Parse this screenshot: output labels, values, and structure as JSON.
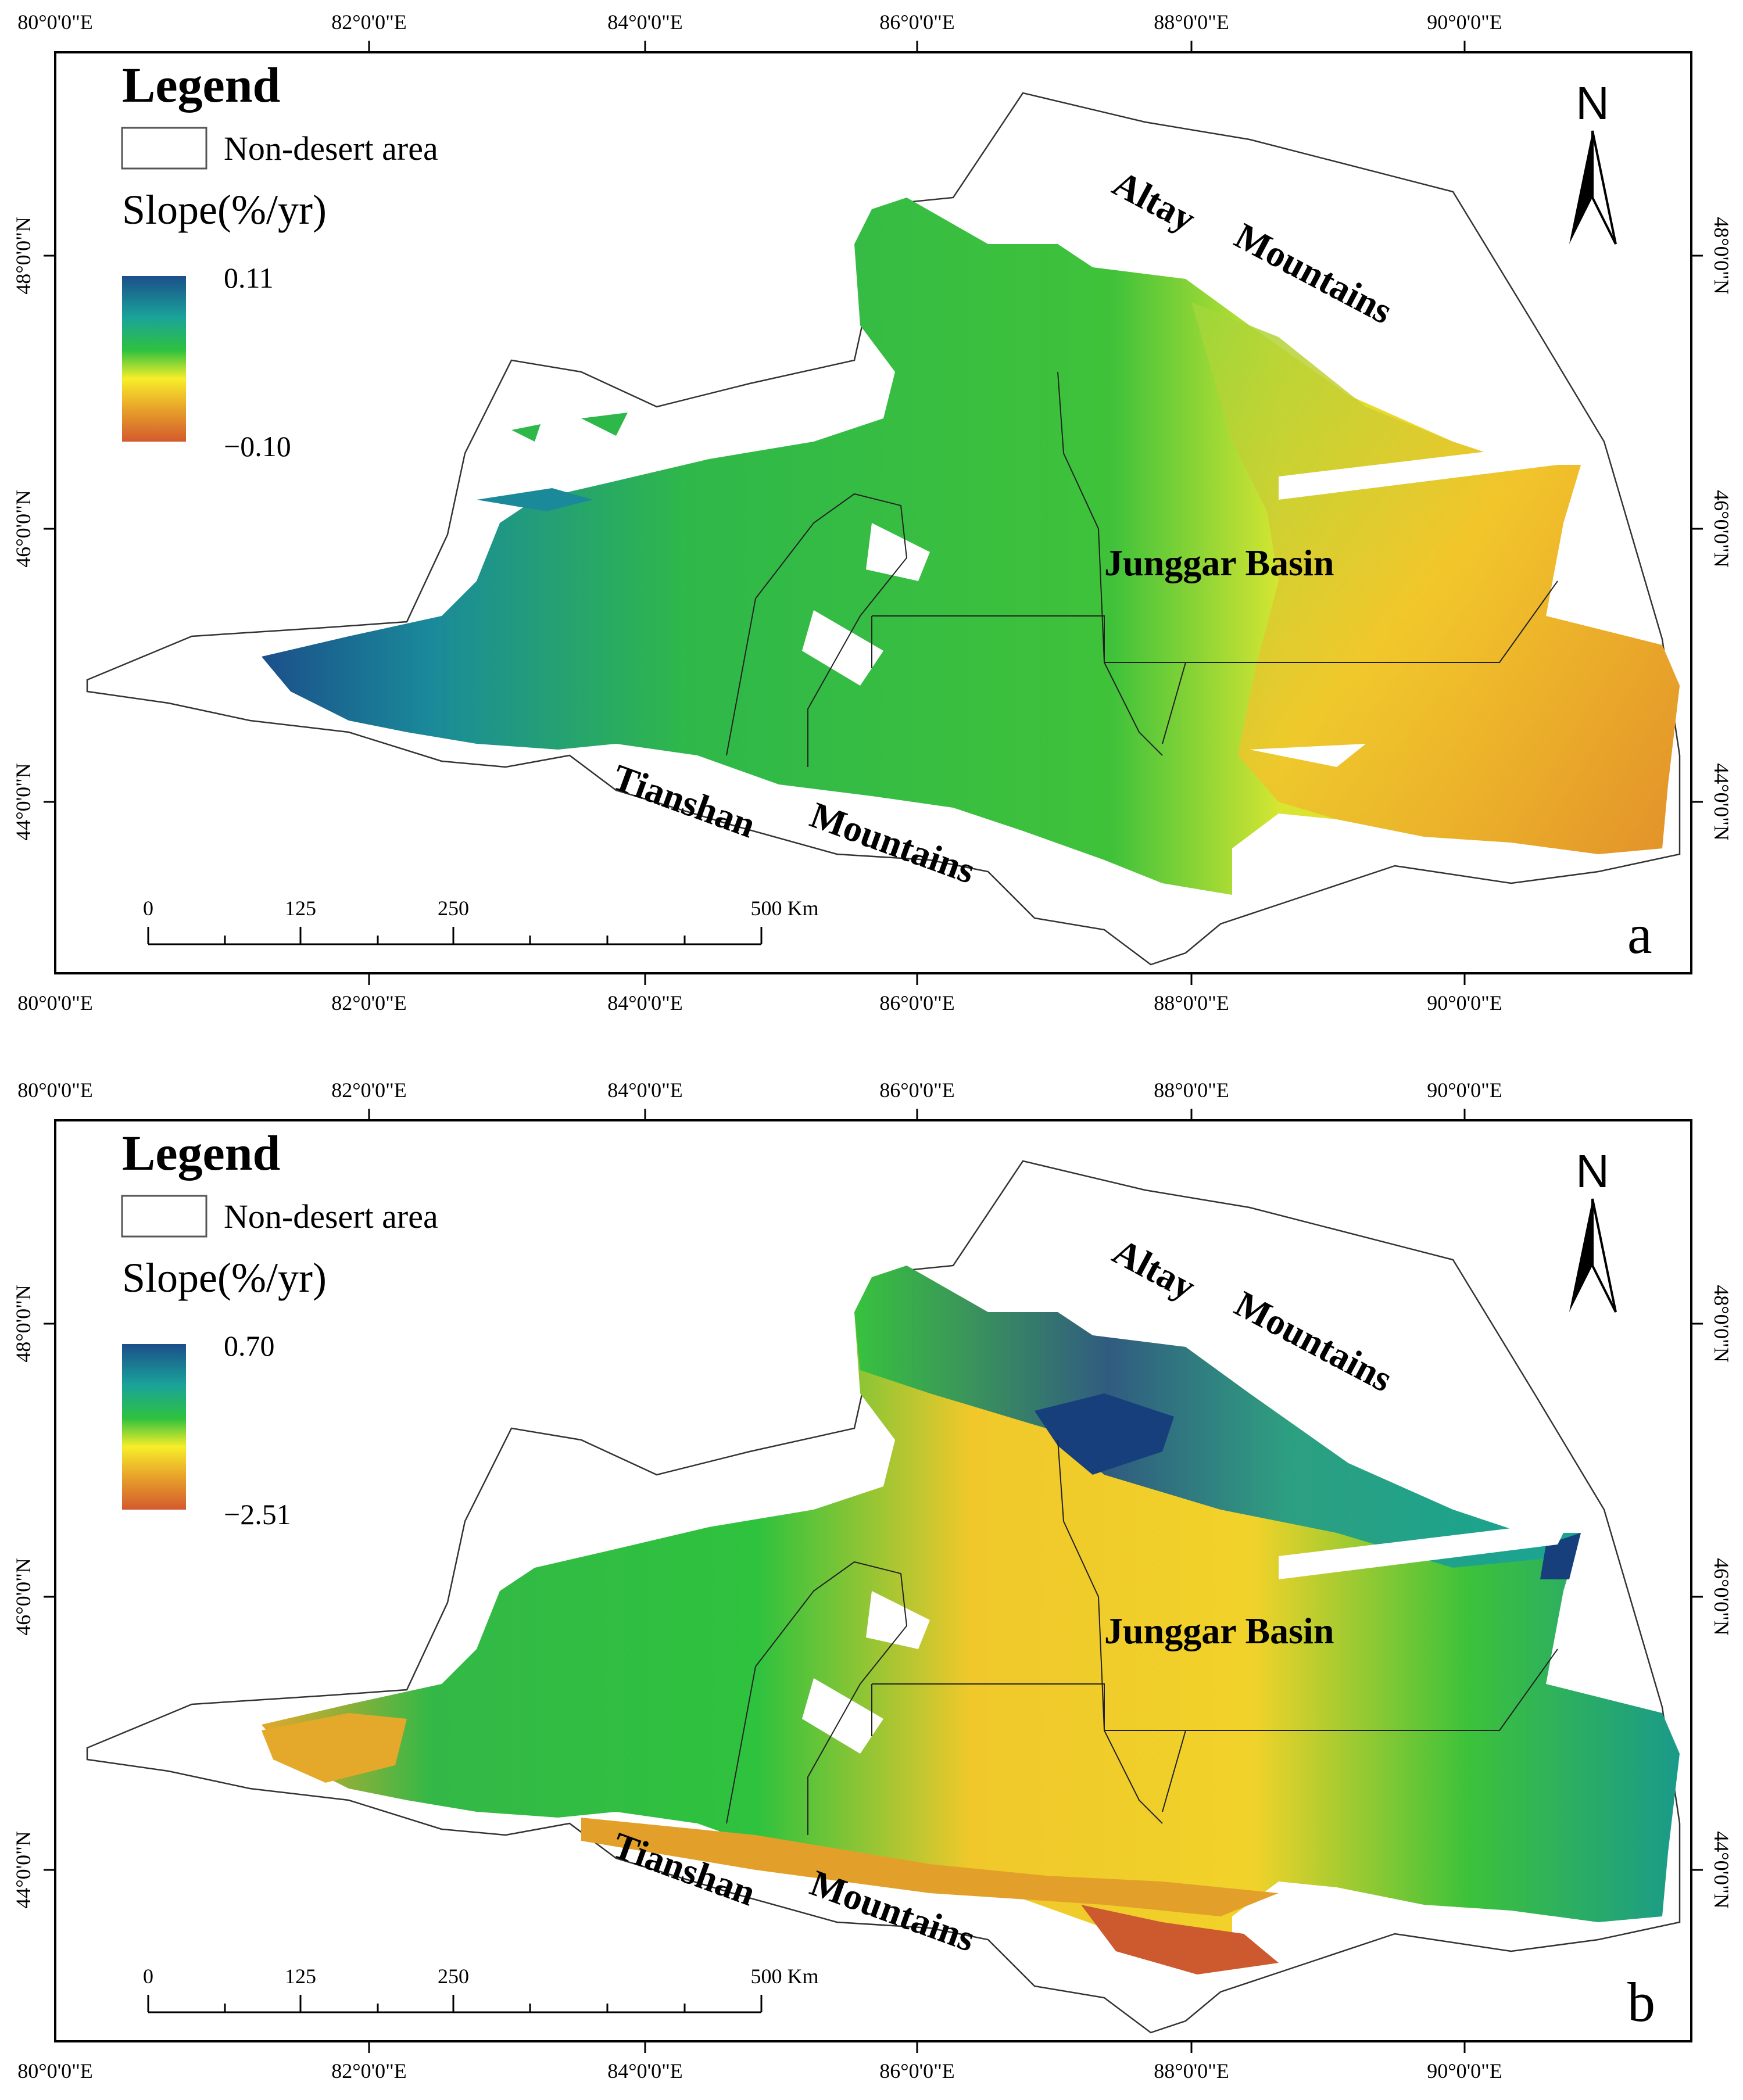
{
  "graticule": {
    "lon_labels": [
      "80°0'0\"E",
      "82°0'0\"E",
      "84°0'0\"E",
      "86°0'0\"E",
      "88°0'0\"E",
      "90°0'0\"E"
    ],
    "lat_labels": [
      "48°0'0\"N",
      "46°0'0\"N",
      "44°0'0\"N"
    ]
  },
  "legend": {
    "title": "Legend",
    "non_desert_label": "Non-desert area",
    "slope_label": "Slope(%/yr)"
  },
  "labels": {
    "altay": "Altay",
    "mountains": "Mountains",
    "junggar": "Junggar Basin",
    "tianshan": "Tianshan",
    "north": "N"
  },
  "scale_bar": {
    "ticks": [
      "0",
      "125",
      "250",
      "500 Km"
    ]
  },
  "panels": [
    {
      "letter": "a",
      "max_label": "0.11",
      "min_label": "−0.10"
    },
    {
      "letter": "b",
      "max_label": "0.70",
      "min_label": "−2.51"
    }
  ],
  "colors": {
    "ramp_high": "#1b4f8a",
    "ramp_mid_high": "#1aa39a",
    "ramp_mid": "#2fc23e",
    "ramp_low_mid": "#f7ee2a",
    "ramp_low": "#d35a2e"
  }
}
